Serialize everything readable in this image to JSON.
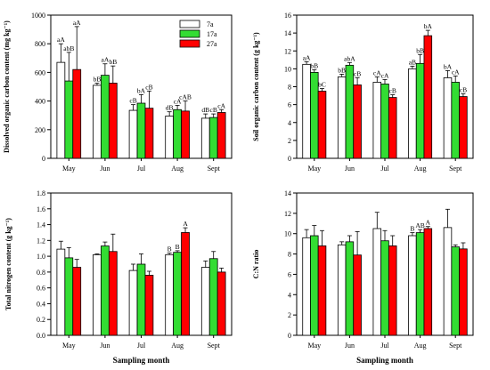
{
  "chart_data": [
    {
      "type": "bar",
      "ylabel": "Dissolved organic carbon content (mg kg⁻¹)",
      "xlabel": "",
      "categories": [
        "May",
        "Jun",
        "Jul",
        "Aug",
        "Sept"
      ],
      "ylim": [
        0,
        1000
      ],
      "yticks": [
        0,
        200,
        400,
        600,
        800,
        1000
      ],
      "legend": "top-right",
      "series": [
        {
          "name": "7a",
          "color": "#ffffff",
          "values": [
            670,
            510,
            335,
            295,
            280
          ],
          "errors": [
            130,
            15,
            40,
            30,
            30
          ],
          "labels": [
            "aA",
            "bB",
            "cB",
            "dB",
            "dB"
          ]
        },
        {
          "name": "17a",
          "color": "#33dd33",
          "values": [
            540,
            580,
            385,
            340,
            285
          ],
          "errors": [
            200,
            80,
            60,
            30,
            25
          ],
          "labels": [
            "abB",
            "aA",
            "bA",
            "cA",
            "cB"
          ]
        },
        {
          "name": "27a",
          "color": "#ff0000",
          "values": [
            620,
            525,
            350,
            330,
            320
          ],
          "errors": [
            300,
            120,
            120,
            70,
            20
          ],
          "labels": [
            "aA",
            "bB",
            "cB",
            "cAB",
            "cA"
          ]
        }
      ]
    },
    {
      "type": "bar",
      "ylabel": "Soil organic carbon content (g kg⁻¹)",
      "xlabel": "",
      "categories": [
        "May",
        "Jun",
        "Jul",
        "Aug",
        "Sept"
      ],
      "ylim": [
        0,
        16
      ],
      "yticks": [
        0,
        2,
        4,
        6,
        8,
        10,
        12,
        14,
        16
      ],
      "series": [
        {
          "name": "7a",
          "color": "#ffffff",
          "values": [
            10.5,
            9.1,
            8.5,
            10.0,
            9.0
          ],
          "errors": [
            0.3,
            0.3,
            0.6,
            0.3,
            0.8
          ],
          "labels": [
            "aA",
            "bB",
            "cA",
            "aB",
            "bA"
          ]
        },
        {
          "name": "17a",
          "color": "#33dd33",
          "values": [
            9.6,
            10.4,
            8.3,
            10.6,
            8.5
          ],
          "errors": [
            0.3,
            0.3,
            0.5,
            1.0,
            0.7
          ],
          "labels": [
            "bB",
            "abA",
            "cA",
            "bB",
            "cA"
          ]
        },
        {
          "name": "27a",
          "color": "#ff0000",
          "values": [
            7.5,
            8.2,
            6.8,
            13.7,
            6.9
          ],
          "errors": [
            0.3,
            0.8,
            0.3,
            0.6,
            0.3
          ],
          "labels": [
            "bC",
            "cB",
            "cB",
            "bA",
            "cB"
          ]
        }
      ]
    },
    {
      "type": "bar",
      "ylabel": "Total nitrogen  content (g kg⁻¹)",
      "xlabel": "Sampling month",
      "categories": [
        "May",
        "Jun",
        "Jul",
        "Aug",
        "Sept"
      ],
      "ylim": [
        0.0,
        1.8
      ],
      "yticks": [
        0.0,
        0.2,
        0.4,
        0.6,
        0.8,
        1.0,
        1.2,
        1.4,
        1.6,
        1.8
      ],
      "series": [
        {
          "name": "7a",
          "color": "#ffffff",
          "values": [
            1.09,
            1.02,
            0.82,
            1.02,
            0.86
          ],
          "errors": [
            0.1,
            0.01,
            0.08,
            0.02,
            0.08
          ],
          "labels": [
            "",
            "",
            "",
            "B",
            ""
          ]
        },
        {
          "name": "17a",
          "color": "#33dd33",
          "values": [
            0.98,
            1.13,
            0.9,
            1.05,
            0.97
          ],
          "errors": [
            0.13,
            0.05,
            0.13,
            0.02,
            0.09
          ],
          "labels": [
            "",
            "",
            "",
            "B",
            ""
          ]
        },
        {
          "name": "27a",
          "color": "#ff0000",
          "values": [
            0.86,
            1.06,
            0.76,
            1.3,
            0.8
          ],
          "errors": [
            0.1,
            0.22,
            0.05,
            0.06,
            0.05
          ],
          "labels": [
            "",
            "",
            "",
            "A",
            ""
          ]
        }
      ]
    },
    {
      "type": "bar",
      "ylabel": "C:N ratio",
      "xlabel": "Sampling month",
      "categories": [
        "May",
        "Jun",
        "Jul",
        "Aug",
        "Sept"
      ],
      "ylim": [
        0,
        14
      ],
      "yticks": [
        0,
        2,
        4,
        6,
        8,
        10,
        12,
        14
      ],
      "series": [
        {
          "name": "7a",
          "color": "#ffffff",
          "values": [
            9.6,
            8.9,
            10.5,
            9.8,
            10.6
          ],
          "errors": [
            0.8,
            0.3,
            1.6,
            0.3,
            1.8
          ],
          "labels": [
            "",
            "",
            "",
            "B",
            ""
          ]
        },
        {
          "name": "17a",
          "color": "#33dd33",
          "values": [
            9.8,
            9.2,
            9.3,
            10.1,
            8.7
          ],
          "errors": [
            1.0,
            0.6,
            1.0,
            0.3,
            0.2
          ],
          "labels": [
            "",
            "",
            "",
            "AB",
            ""
          ]
        },
        {
          "name": "27a",
          "color": "#ff0000",
          "values": [
            8.8,
            7.9,
            8.8,
            10.5,
            8.5
          ],
          "errors": [
            1.5,
            2.3,
            1.0,
            0.2,
            0.6
          ],
          "labels": [
            "",
            "",
            "",
            "A",
            ""
          ]
        }
      ]
    }
  ]
}
